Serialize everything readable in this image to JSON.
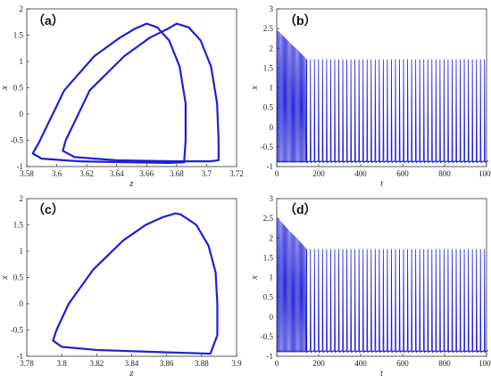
{
  "chart_data": [
    {
      "type": "line",
      "panel_label": "（a）",
      "xlabel": "z",
      "ylabel": "x",
      "xlim": [
        3.58,
        3.72
      ],
      "ylim": [
        -1,
        2
      ],
      "xticks": [
        "3.58",
        "3.6",
        "3.62",
        "3.64",
        "3.66",
        "3.68",
        "3.7",
        "3.72"
      ],
      "yticks": [
        "-1",
        "-0.5",
        "0",
        "0.5",
        "1",
        "1.5",
        "2"
      ],
      "series": [
        {
          "x": [
            3.66,
            3.652,
            3.642,
            3.625,
            3.605,
            3.588,
            3.584,
            3.59,
            3.615,
            3.65,
            3.675,
            3.685,
            3.686,
            3.686,
            3.682,
            3.675,
            3.667,
            3.66
          ],
          "y": [
            1.72,
            1.62,
            1.45,
            1.1,
            0.45,
            -0.55,
            -0.75,
            -0.85,
            -0.9,
            -0.92,
            -0.93,
            -0.92,
            -0.5,
            0.2,
            0.9,
            1.4,
            1.65,
            1.72
          ]
        },
        {
          "x": [
            3.68,
            3.674,
            3.662,
            3.645,
            3.622,
            3.606,
            3.604,
            3.612,
            3.64,
            3.68,
            3.702,
            3.708,
            3.708,
            3.707,
            3.703,
            3.696,
            3.688,
            3.68
          ],
          "y": [
            1.72,
            1.62,
            1.45,
            1.1,
            0.45,
            -0.5,
            -0.7,
            -0.82,
            -0.88,
            -0.9,
            -0.9,
            -0.88,
            -0.5,
            0.2,
            0.9,
            1.4,
            1.65,
            1.72
          ]
        }
      ],
      "color": "#1f1fd6",
      "grid": false
    },
    {
      "type": "line",
      "panel_label": "（b）",
      "xlabel": "t",
      "ylabel": "x",
      "xlim": [
        0,
        1000
      ],
      "ylim": [
        -1,
        3
      ],
      "xticks": [
        "0",
        "200",
        "400",
        "600",
        "800",
        "1000"
      ],
      "yticks": [
        "-1",
        "-0.5",
        "0",
        "0.5",
        "1",
        "1.5",
        "2",
        "2.5",
        "3"
      ],
      "series_summary": {
        "initial_max": 2.45,
        "steady_max": 1.72,
        "min": -0.9,
        "transient_end_t": 140,
        "spike_period": 19.3
      },
      "color": "#1f1fd6",
      "grid": false
    },
    {
      "type": "line",
      "panel_label": "（c）",
      "xlabel": "z",
      "ylabel": "x",
      "xlim": [
        3.78,
        3.9
      ],
      "ylim": [
        -1,
        2
      ],
      "xticks": [
        "3.78",
        "3.8",
        "3.82",
        "3.84",
        "3.86",
        "3.88",
        "3.9"
      ],
      "yticks": [
        "-1",
        "-0.5",
        "0",
        "0.5",
        "1",
        "1.5",
        "2"
      ],
      "series": [
        {
          "x": [
            3.865,
            3.858,
            3.848,
            3.835,
            3.818,
            3.804,
            3.797,
            3.795,
            3.8,
            3.82,
            3.855,
            3.885,
            3.889,
            3.889,
            3.888,
            3.884,
            3.877,
            3.868,
            3.865
          ],
          "y": [
            1.72,
            1.65,
            1.5,
            1.2,
            0.65,
            0.0,
            -0.5,
            -0.7,
            -0.82,
            -0.88,
            -0.92,
            -0.95,
            -0.6,
            0.0,
            0.6,
            1.1,
            1.5,
            1.7,
            1.72
          ]
        }
      ],
      "color": "#1f1fd6",
      "grid": false
    },
    {
      "type": "line",
      "panel_label": "（d）",
      "xlabel": "t",
      "ylabel": "x",
      "xlim": [
        0,
        1000
      ],
      "ylim": [
        -1,
        3
      ],
      "xticks": [
        "0",
        "200",
        "400",
        "600",
        "800",
        "1000"
      ],
      "yticks": [
        "-1",
        "-0.5",
        "0",
        "0.5",
        "1",
        "1.5",
        "2",
        "2.5",
        "3"
      ],
      "series_summary": {
        "initial_max": 2.5,
        "steady_max": 1.72,
        "min": -0.9,
        "transient_end_t": 140,
        "spike_period": 19.3
      },
      "color": "#1f1fd6",
      "grid": false
    }
  ]
}
